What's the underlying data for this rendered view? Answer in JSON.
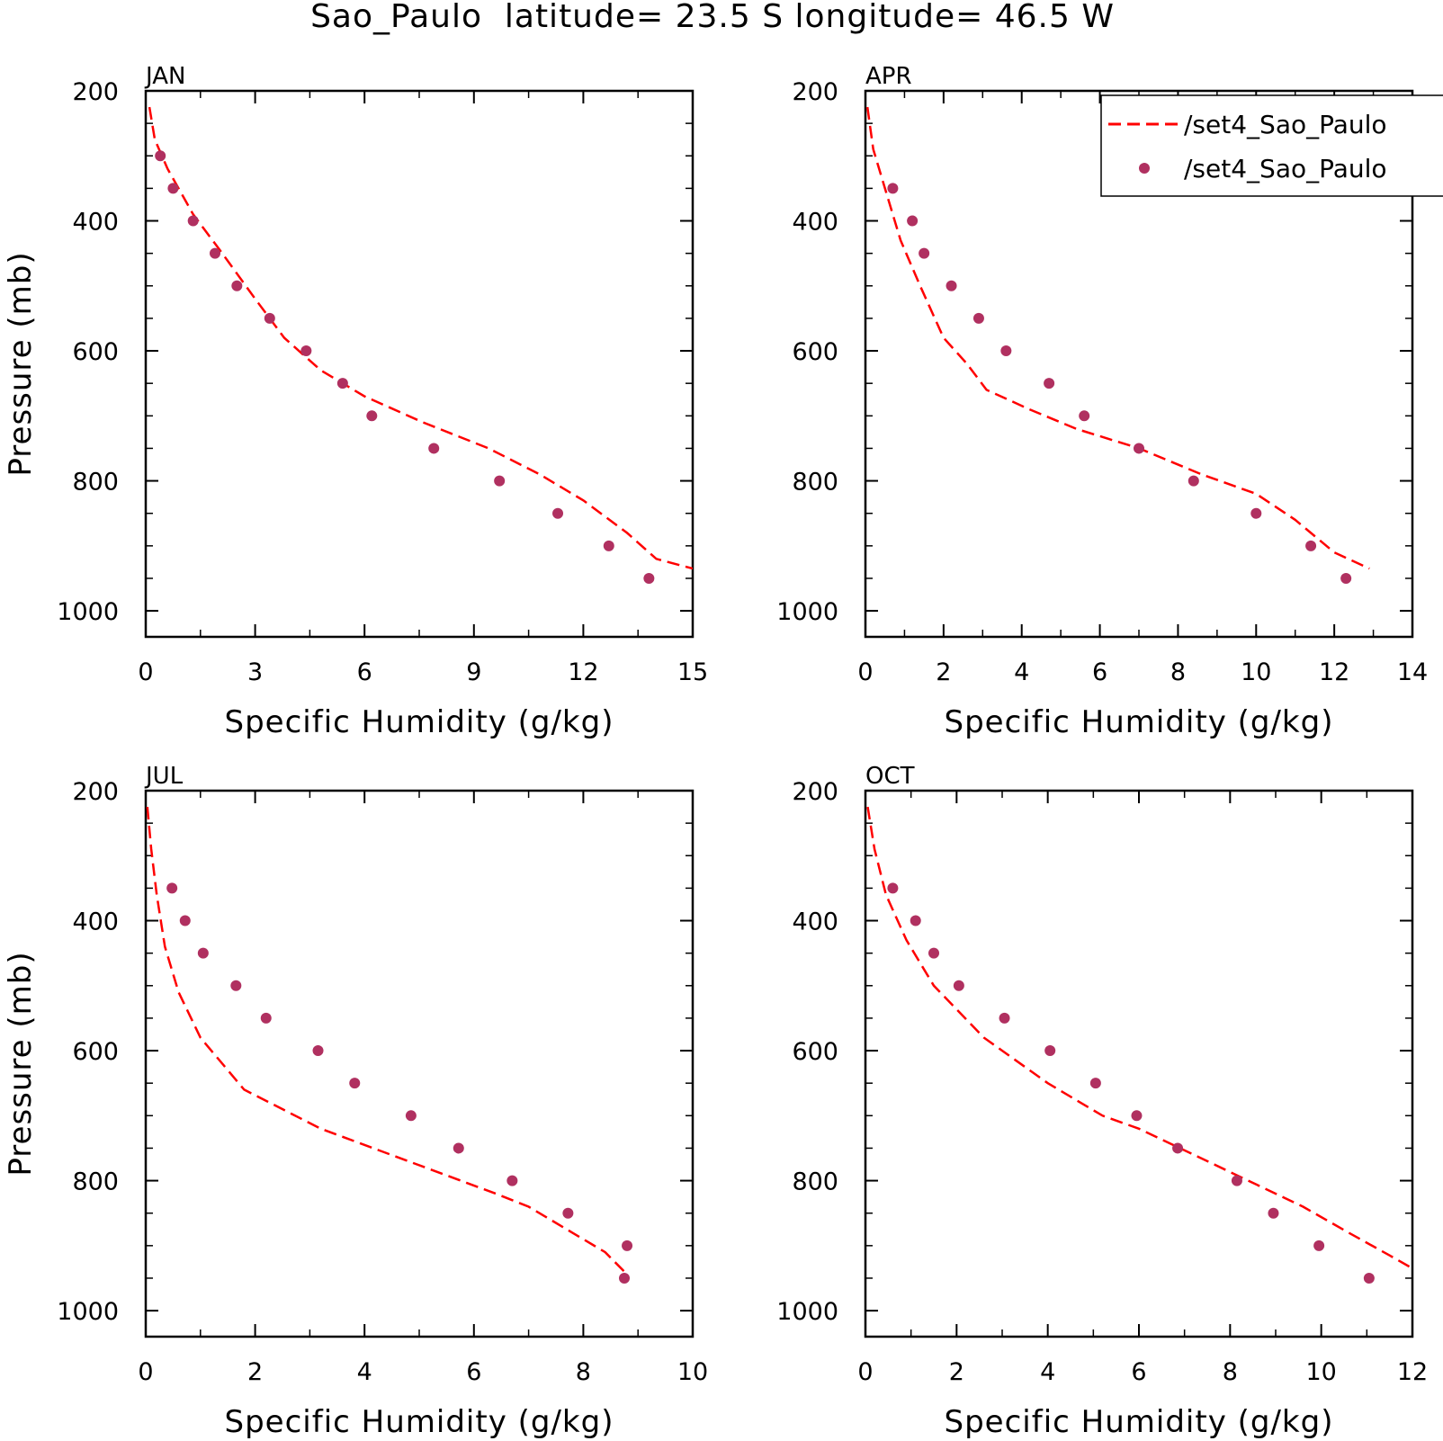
{
  "title": "Sao_Paulo  latitude= 23.5 S longitude= 46.5 W",
  "legend": {
    "entries": [
      {
        "label": "/set4_Sao_Paulo",
        "style": "dashed-line",
        "color": "#ff0000"
      },
      {
        "label": "/set4_Sao_Paulo",
        "style": "dots",
        "color": "#b03060"
      }
    ],
    "placement": "top-right"
  },
  "colors": {
    "line": "#ff0000",
    "dots": "#b03060",
    "axes": "#000000"
  },
  "chart_data": [
    {
      "type": "line",
      "panel_title": "JAN",
      "xlabel": "Specific Humidity (g/kg)",
      "ylabel": "Pressure (mb)",
      "xlim": [
        0,
        15
      ],
      "ylim": [
        1040,
        200
      ],
      "y_inverted": true,
      "xticks": [
        0,
        3,
        6,
        9,
        12,
        15
      ],
      "yticks": [
        200,
        400,
        600,
        800,
        1000
      ],
      "series": [
        {
          "style": "dashed-line",
          "x": [
            0.1,
            0.25,
            0.6,
            1.3,
            2.1,
            3.0,
            3.8,
            4.8,
            6.0,
            7.6,
            9.4,
            10.8,
            12.0,
            13.2,
            14.0,
            15.0
          ],
          "y": [
            225,
            275,
            320,
            390,
            450,
            520,
            580,
            630,
            670,
            710,
            750,
            790,
            830,
            880,
            920,
            935
          ]
        },
        {
          "style": "dots",
          "x": [
            0.4,
            0.75,
            1.3,
            1.9,
            2.5,
            3.4,
            4.4,
            5.4,
            6.2,
            7.9,
            9.7,
            11.3,
            12.7,
            13.8
          ],
          "y": [
            300,
            350,
            400,
            450,
            500,
            550,
            600,
            650,
            700,
            750,
            800,
            850,
            900,
            950
          ]
        }
      ]
    },
    {
      "type": "line",
      "panel_title": "APR",
      "xlabel": "Specific Humidity (g/kg)",
      "ylabel": "",
      "xlim": [
        0,
        14
      ],
      "ylim": [
        1040,
        200
      ],
      "y_inverted": true,
      "xticks": [
        0,
        2,
        4,
        6,
        8,
        10,
        12,
        14
      ],
      "yticks": [
        200,
        400,
        600,
        800,
        1000
      ],
      "series": [
        {
          "style": "dashed-line",
          "x": [
            0.05,
            0.2,
            0.5,
            0.9,
            1.4,
            2.0,
            2.6,
            3.1,
            4.2,
            5.4,
            7.0,
            8.6,
            10.0,
            11.0,
            12.0,
            12.9
          ],
          "y": [
            225,
            290,
            350,
            430,
            500,
            580,
            620,
            660,
            690,
            720,
            750,
            790,
            820,
            860,
            910,
            935
          ]
        },
        {
          "style": "dots",
          "x": [
            0.7,
            1.2,
            1.5,
            2.2,
            2.9,
            3.6,
            4.7,
            5.6,
            7.0,
            8.4,
            10.0,
            11.4,
            12.3
          ],
          "y": [
            350,
            400,
            450,
            500,
            550,
            600,
            650,
            700,
            750,
            800,
            850,
            900,
            950
          ]
        }
      ]
    },
    {
      "type": "line",
      "panel_title": "JUL",
      "xlabel": "Specific Humidity (g/kg)",
      "ylabel": "Pressure (mb)",
      "xlim": [
        0,
        10
      ],
      "ylim": [
        1040,
        200
      ],
      "y_inverted": true,
      "xticks": [
        0,
        2,
        4,
        6,
        8,
        10
      ],
      "yticks": [
        200,
        400,
        600,
        800,
        1000
      ],
      "series": [
        {
          "style": "dashed-line",
          "x": [
            0.03,
            0.1,
            0.2,
            0.35,
            0.6,
            1.0,
            1.8,
            3.2,
            4.8,
            6.4,
            7.0,
            7.8,
            8.4,
            8.75
          ],
          "y": [
            225,
            290,
            360,
            440,
            510,
            580,
            660,
            720,
            770,
            820,
            840,
            880,
            910,
            940
          ]
        },
        {
          "style": "dots",
          "x": [
            0.48,
            0.72,
            1.05,
            1.65,
            2.2,
            3.15,
            3.82,
            4.85,
            5.72,
            6.7,
            7.72,
            8.8,
            8.75
          ],
          "y": [
            350,
            400,
            450,
            500,
            550,
            600,
            650,
            700,
            750,
            800,
            850,
            900,
            950
          ]
        }
      ]
    },
    {
      "type": "line",
      "panel_title": "OCT",
      "xlabel": "Specific Humidity (g/kg)",
      "ylabel": "",
      "xlim": [
        0,
        12
      ],
      "ylim": [
        1040,
        200
      ],
      "y_inverted": true,
      "xticks": [
        0,
        2,
        4,
        6,
        8,
        10,
        12
      ],
      "yticks": [
        200,
        400,
        600,
        800,
        1000
      ],
      "series": [
        {
          "style": "dashed-line",
          "x": [
            0.05,
            0.2,
            0.45,
            0.9,
            1.5,
            2.6,
            4.0,
            5.2,
            6.0,
            7.2,
            8.4,
            9.6,
            10.6,
            11.5,
            12.0
          ],
          "y": [
            225,
            290,
            360,
            430,
            500,
            580,
            650,
            700,
            720,
            760,
            800,
            840,
            880,
            915,
            935
          ]
        },
        {
          "style": "dots",
          "x": [
            0.6,
            1.1,
            1.5,
            2.05,
            3.05,
            4.05,
            5.05,
            5.95,
            6.85,
            8.15,
            8.95,
            9.95,
            11.05
          ],
          "y": [
            350,
            400,
            450,
            500,
            550,
            600,
            650,
            700,
            750,
            800,
            850,
            900,
            950
          ]
        }
      ]
    }
  ]
}
